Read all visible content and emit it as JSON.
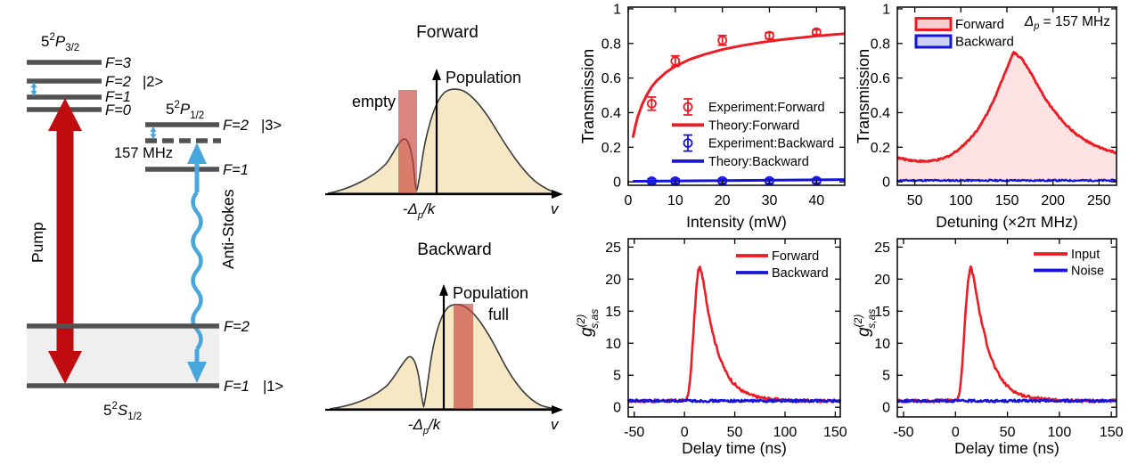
{
  "level_diagram": {
    "term_p32": {
      "base": "5",
      "sup": "2",
      "letter": "P",
      "sub": "3/2"
    },
    "term_p12": {
      "base": "5",
      "sup": "2",
      "letter": "P",
      "sub": "1/2"
    },
    "term_s12": {
      "base": "5",
      "sup": "2",
      "letter": "S",
      "sub": "1/2"
    },
    "p32_levels": {
      "f3": "F=3",
      "f2": "F=2",
      "f1": "F=1",
      "f0": "F=0"
    },
    "p12_levels": {
      "f2": "F=2",
      "f1": "F=1"
    },
    "ground_levels": {
      "f2": "F=2",
      "f1": "F=1"
    },
    "kets": {
      "k1": "|1>",
      "k2": "|2>",
      "k3": "|3>"
    },
    "detuning": "157 MHz",
    "pump": "Pump",
    "anti_stokes": "Anti-Stokes",
    "colors": {
      "pump_red": "#c00b0f",
      "stokes_blue": "#47a7dc",
      "level_gray": "#525252",
      "ground_shade": "#efefef"
    }
  },
  "velocity_diagrams": {
    "forward": {
      "title": "Forward",
      "ylabel": "Population",
      "band_label": "empty",
      "x_axis_label": "v",
      "x_tick": {
        "pre": "-Δ",
        "sub": "p",
        "post": "/k"
      }
    },
    "backward": {
      "title": "Backward",
      "ylabel": "Population",
      "band_label": "full",
      "x_axis_label": "v",
      "x_tick": {
        "pre": "-Δ",
        "sub": "p",
        "post": "/k"
      }
    },
    "colors": {
      "dist_fill": "#f6e7c5",
      "band_fill": "rgba(199,68,60,0.65)",
      "outline": "#3a3a3a"
    }
  },
  "chart_data": [
    {
      "name": "transmission-vs-intensity",
      "type": "line+scatter",
      "xlabel": "Intensity (mW)",
      "ylabel": "Transmission",
      "xlim": [
        0,
        46
      ],
      "ylim": [
        -0.02,
        1.01
      ],
      "xticks": [
        0,
        10,
        20,
        30,
        40
      ],
      "yticks": [
        0,
        0.2,
        0.4,
        0.6,
        0.8,
        1
      ],
      "series": [
        {
          "name": "Experiment:Forward",
          "style": "scatter",
          "color": "#ed1c24",
          "x": [
            5,
            10,
            20,
            30,
            40
          ],
          "y": [
            0.452,
            0.698,
            0.818,
            0.845,
            0.865
          ],
          "yerr": [
            0.038,
            0.03,
            0.028,
            0.018,
            0.014
          ]
        },
        {
          "name": "Theory:Forward",
          "style": "line",
          "color": "#ed1c24",
          "width": 3,
          "x": [
            1,
            1.5,
            2,
            3,
            4,
            5,
            6,
            8,
            10,
            13,
            16,
            20,
            24,
            28,
            32,
            36,
            40,
            44,
            46
          ],
          "y": [
            0.255,
            0.32,
            0.375,
            0.45,
            0.505,
            0.55,
            0.583,
            0.632,
            0.668,
            0.707,
            0.735,
            0.765,
            0.787,
            0.805,
            0.82,
            0.832,
            0.843,
            0.852,
            0.856
          ]
        },
        {
          "name": "Experiment:Backward",
          "style": "scatter",
          "color": "#1414dc",
          "x": [
            5,
            10,
            20,
            30,
            40
          ],
          "y": [
            0.004,
            0.004,
            0.005,
            0.005,
            0.006
          ],
          "yerr": [
            0.013,
            0.013,
            0.013,
            0.013,
            0.013
          ]
        },
        {
          "name": "Theory:Backward",
          "style": "line",
          "color": "#1414dc",
          "width": 3,
          "x": [
            1,
            46
          ],
          "y": [
            0.003,
            0.013
          ]
        }
      ]
    },
    {
      "name": "transmission-vs-detuning",
      "type": "area",
      "xlabel": "Detuning (×2π MHz)",
      "ylabel": "Transmission",
      "xlim": [
        31,
        269
      ],
      "ylim": [
        -0.02,
        1.01
      ],
      "xticks": [
        50,
        100,
        150,
        200,
        250
      ],
      "yticks": [
        0,
        0.2,
        0.4,
        0.6,
        0.8,
        1
      ],
      "annotation": {
        "pre": "Δ",
        "sub": "p",
        "post": " = 157 MHz"
      },
      "series": [
        {
          "name": "Forward",
          "style": "line",
          "color": "#ed1c24",
          "width": 2.8,
          "fill": "rgba(237,28,36,0.13)",
          "legend_fill": "#f7cdcd",
          "noise": 0.005,
          "x": [
            31,
            40,
            50,
            60,
            70,
            80,
            90,
            100,
            110,
            120,
            130,
            140,
            150,
            157,
            165,
            175,
            185,
            195,
            205,
            215,
            225,
            235,
            245,
            255,
            262,
            269
          ],
          "y": [
            0.138,
            0.13,
            0.122,
            0.118,
            0.122,
            0.133,
            0.158,
            0.198,
            0.25,
            0.315,
            0.41,
            0.525,
            0.66,
            0.748,
            0.72,
            0.64,
            0.54,
            0.455,
            0.385,
            0.325,
            0.277,
            0.24,
            0.21,
            0.19,
            0.178,
            0.168
          ]
        },
        {
          "name": "Backward",
          "style": "line",
          "color": "#1414dc",
          "width": 2.2,
          "fill": "rgba(20,20,220,0.18)",
          "legend_fill": "#ccd2f3",
          "noise": 0.005,
          "x": [
            31,
            269
          ],
          "y": [
            0.008,
            0.008
          ]
        }
      ]
    },
    {
      "name": "g2-forward-backward",
      "type": "line",
      "xlabel": "Delay time (ns)",
      "ylabel_parts": {
        "main": "g",
        "sup": "(2)",
        "sub": "s,as"
      },
      "xlim": [
        -56,
        155
      ],
      "ylim": [
        -1.5,
        26.3
      ],
      "xticks": [
        -50,
        0,
        50,
        100,
        150
      ],
      "yticks": [
        0,
        5,
        10,
        15,
        20,
        25
      ],
      "series": [
        {
          "name": "Forward",
          "style": "line",
          "color": "#ed1c24",
          "width": 2.6,
          "noise": 0.22,
          "x": [
            -56,
            -20,
            0,
            2,
            4,
            6,
            8,
            10,
            12,
            14,
            15,
            16,
            18,
            20,
            23,
            26,
            30,
            34,
            38,
            43,
            48,
            54,
            60,
            68,
            76,
            85,
            95,
            110,
            130,
            155
          ],
          "y": [
            1,
            1,
            1.05,
            1.2,
            2.2,
            5,
            9.5,
            14.5,
            19,
            21.6,
            22,
            21.5,
            20.3,
            18.3,
            15.5,
            13.2,
            10.4,
            8.3,
            6.6,
            5,
            3.9,
            2.95,
            2.3,
            1.8,
            1.5,
            1.3,
            1.15,
            1.05,
            1,
            1
          ]
        },
        {
          "name": "Backward",
          "style": "line",
          "color": "#1414dc",
          "width": 2.6,
          "noise": 0.18,
          "x": [
            -56,
            155
          ],
          "y": [
            1,
            1
          ]
        }
      ]
    },
    {
      "name": "g2-input-noise",
      "type": "line",
      "xlabel": "Delay time (ns)",
      "ylabel_parts": {
        "main": "g",
        "sup": "(2)",
        "sub": "s,as"
      },
      "xlim": [
        -56,
        155
      ],
      "ylim": [
        -1.5,
        26.3
      ],
      "xticks": [
        -50,
        0,
        50,
        100,
        150
      ],
      "yticks": [
        0,
        5,
        10,
        15,
        20,
        25
      ],
      "series": [
        {
          "name": "Input",
          "style": "line",
          "color": "#ed1c24",
          "width": 2.6,
          "noise": 0.22,
          "x": [
            -56,
            -20,
            0,
            2,
            4,
            6,
            8,
            10,
            12,
            14,
            15,
            16,
            18,
            20,
            23,
            26,
            30,
            34,
            38,
            43,
            48,
            54,
            60,
            68,
            76,
            85,
            95,
            110,
            130,
            155
          ],
          "y": [
            1,
            1,
            1.05,
            1.25,
            2.4,
            5.5,
            10.5,
            15.5,
            19.5,
            21.7,
            21.9,
            21.2,
            19.8,
            17.8,
            15,
            12.7,
            10,
            7.9,
            6.2,
            4.7,
            3.6,
            2.75,
            2.15,
            1.7,
            1.45,
            1.25,
            1.1,
            1.03,
            1,
            1
          ]
        },
        {
          "name": "Noise",
          "style": "line",
          "color": "#1414dc",
          "width": 2.6,
          "noise": 0.18,
          "x": [
            -56,
            155
          ],
          "y": [
            1,
            1
          ]
        }
      ]
    }
  ]
}
